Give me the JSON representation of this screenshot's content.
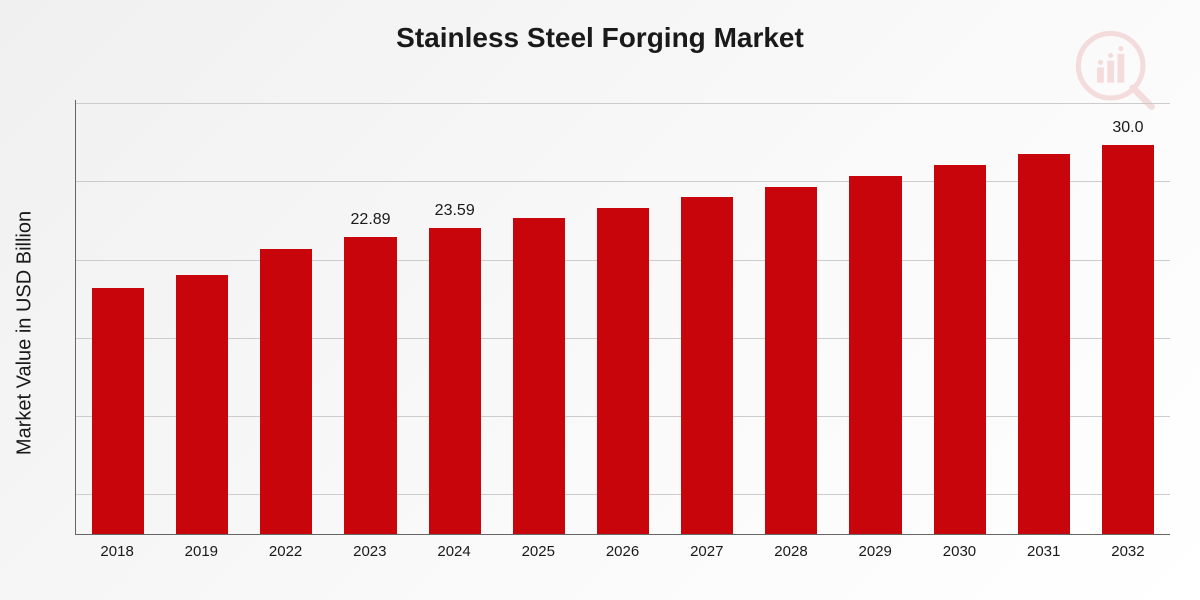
{
  "title": "Stainless Steel Forging Market",
  "y_axis_label": "Market Value in USD Billion",
  "chart": {
    "type": "bar",
    "categories": [
      "2018",
      "2019",
      "2022",
      "2023",
      "2024",
      "2025",
      "2026",
      "2027",
      "2028",
      "2029",
      "2030",
      "2031",
      "2032"
    ],
    "values": [
      19.0,
      20.0,
      22.0,
      22.89,
      23.59,
      24.4,
      25.2,
      26.0,
      26.8,
      27.6,
      28.5,
      29.3,
      30.0
    ],
    "value_labels": [
      "",
      "",
      "",
      "22.89",
      "23.59",
      "",
      "",
      "",
      "",
      "",
      "",
      "",
      "30.0"
    ],
    "bar_color": "#c8050b",
    "y_max": 33.5,
    "gridlines": [
      0.09,
      0.27,
      0.45,
      0.63,
      0.81,
      0.99
    ],
    "gridline_color": "#cccccc",
    "axis_color": "#666666",
    "title_fontsize": 28,
    "label_fontsize": 20,
    "xlabel_fontsize": 15,
    "value_label_fontsize": 16
  },
  "watermark": {
    "icon": "chart-magnify-icon",
    "color": "#c8050b"
  }
}
